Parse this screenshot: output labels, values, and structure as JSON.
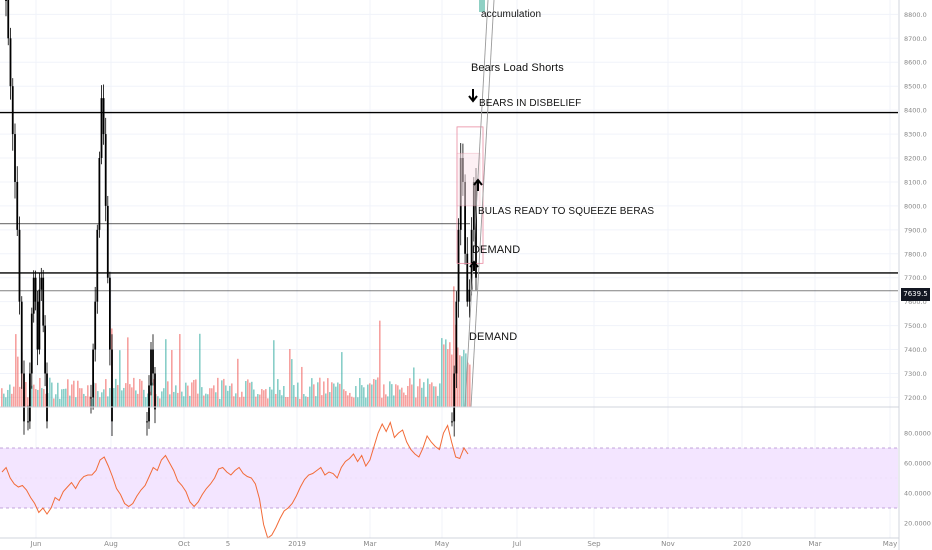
{
  "chart_data": [
    {
      "type": "candlestick",
      "pane": "price",
      "y_axis": {
        "side": "right",
        "range": [
          7160,
          8860
        ],
        "ticks": [
          7200,
          7300,
          7400,
          7500,
          7600,
          7700,
          7800,
          7900,
          8000,
          8100,
          8200,
          8300,
          8400,
          8500,
          8600,
          8700,
          8800
        ],
        "tick_labels": [
          "7200.0",
          "7300.0",
          "7400.0",
          "7500.0",
          "7600.0",
          "7700.0",
          "7800.0",
          "7900.0",
          "8000.0",
          "8100.0",
          "8200.0",
          "8300.0",
          "8400.0",
          "8500.0",
          "8600.0",
          "8700.0",
          "8800.0"
        ]
      },
      "last_price": "7639.5",
      "horizontal_levels": [
        {
          "value": 8390,
          "style": "thick"
        },
        {
          "value": 7925,
          "style": "thin"
        },
        {
          "value": 7720,
          "style": "thick"
        },
        {
          "value": 7645,
          "style": "thin"
        }
      ],
      "volume": true,
      "grid": true,
      "annotations": [
        {
          "text": "accumulation"
        },
        {
          "text": "Bears Load Shorts"
        },
        {
          "text": "BEARS IN DISBELIEF"
        },
        {
          "text": "BULAS READY TO SQUEEZE BERAS"
        },
        {
          "text": "DEMAND"
        },
        {
          "text": "DEMAND"
        }
      ],
      "arrows": [
        {
          "direction": "down"
        },
        {
          "direction": "up"
        },
        {
          "direction": "up"
        }
      ]
    },
    {
      "type": "line",
      "pane": "indicator",
      "y_axis": {
        "side": "right",
        "range": [
          10,
          94
        ],
        "ticks": [
          20,
          40,
          60,
          80
        ],
        "tick_labels": [
          "20.0000",
          "40.0000",
          "60.0000",
          "80.0000"
        ]
      },
      "bands": {
        "upper": 70,
        "lower": 30,
        "fill": "#f3e5ff"
      },
      "series": [
        {
          "color": "#f26b38",
          "values": [
            54,
            57,
            50,
            46,
            44,
            45,
            42,
            37,
            33,
            27,
            30,
            26,
            30,
            37,
            35,
            41,
            44,
            47,
            43,
            48,
            51,
            52,
            52,
            55,
            62,
            64,
            58,
            51,
            43,
            39,
            33,
            31,
            33,
            38,
            42,
            45,
            51,
            57,
            55,
            62,
            65,
            60,
            55,
            48,
            45,
            41,
            34,
            31,
            34,
            39,
            43,
            46,
            50,
            56,
            57,
            54,
            52,
            55,
            57,
            53,
            51,
            50,
            46,
            36,
            19,
            10,
            12,
            17,
            23,
            28,
            30,
            33,
            38,
            44,
            49,
            52,
            53,
            55,
            57,
            52,
            54,
            53,
            50,
            57,
            61,
            63,
            66,
            61,
            65,
            58,
            62,
            71,
            80,
            86,
            81,
            87,
            77,
            80,
            82,
            74,
            69,
            66,
            64,
            70,
            78,
            74,
            71,
            69,
            80,
            85,
            74,
            64,
            63,
            70,
            66
          ]
        }
      ]
    }
  ],
  "x_axis": {
    "labels": [
      "Jun",
      "Aug",
      "Oct",
      "5",
      "2019",
      "Mar",
      "May",
      "Jul",
      "Sep",
      "Nov",
      "2020",
      "Mar",
      "May"
    ]
  },
  "colors": {
    "up": "#26a69a",
    "down": "#ef5350",
    "candle": "#000000",
    "grid": "#f0f3fa",
    "axis_text": "#888888",
    "rsi_line": "#f26b38",
    "band": "#b08ad0"
  }
}
